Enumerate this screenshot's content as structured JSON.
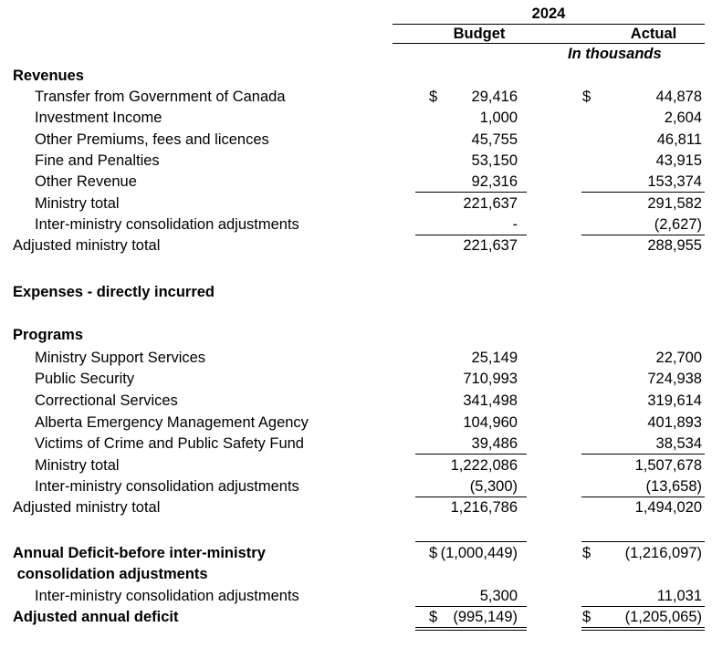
{
  "header": {
    "year": "2024",
    "budget_label": "Budget",
    "actual_label": "Actual",
    "units": "In thousands"
  },
  "revenues": {
    "title": "Revenues",
    "rows": [
      {
        "label": "Transfer from Government of Canada",
        "budget": "29,416",
        "actual": "44,878",
        "budget_currency": "$",
        "actual_currency": "$"
      },
      {
        "label": "Investment Income",
        "budget": "1,000",
        "actual": "2,604"
      },
      {
        "label": "Other Premiums, fees and licences",
        "budget": "45,755",
        "actual": "46,811"
      },
      {
        "label": "Fine and Penalties",
        "budget": "53,150",
        "actual": "43,915"
      },
      {
        "label": "Other Revenue",
        "budget": "92,316",
        "actual": "153,374"
      }
    ],
    "ministry_total": {
      "label": "Ministry total",
      "budget": "221,637",
      "actual": "291,582"
    },
    "consolidation": {
      "label": "Inter-ministry consolidation adjustments",
      "budget": "-",
      "actual": "(2,627)"
    },
    "adjusted_total": {
      "label": "Adjusted ministry total",
      "budget": "221,637",
      "actual": "288,955"
    }
  },
  "expenses": {
    "title": "Expenses  - directly incurred",
    "programs_title": "Programs",
    "rows": [
      {
        "label": "Ministry Support Services",
        "budget": "25,149",
        "actual": "22,700"
      },
      {
        "label": "Public Security",
        "budget": "710,993",
        "actual": "724,938"
      },
      {
        "label": "Correctional Services",
        "budget": "341,498",
        "actual": "319,614"
      },
      {
        "label": "Alberta Emergency Management Agency",
        "budget": "104,960",
        "actual": "401,893"
      },
      {
        "label": "Victims of Crime and Public Safety Fund",
        "budget": "39,486",
        "actual": "38,534"
      }
    ],
    "ministry_total": {
      "label": "Ministry total",
      "budget": "1,222,086",
      "actual": "1,507,678"
    },
    "consolidation": {
      "label": "Inter-ministry consolidation adjustments",
      "budget": "(5,300)",
      "actual": "(13,658)"
    },
    "adjusted_total": {
      "label": "Adjusted ministry total",
      "budget": "1,216,786",
      "actual": "1,494,020"
    }
  },
  "deficit": {
    "label_line1": "Annual Deficit-before inter-ministry",
    "label_line2": " consolidation adjustments",
    "budget": "(1,000,449)",
    "actual": "(1,216,097)",
    "budget_currency": "$",
    "actual_currency": "$",
    "consolidation": {
      "label": "Inter-ministry consolidation adjustments",
      "budget": "5,300",
      "actual": "11,031"
    },
    "adjusted": {
      "label": "Adjusted annual deficit",
      "budget": "(995,149)",
      "actual": "(1,205,065)",
      "budget_currency": "$",
      "actual_currency": "$"
    }
  }
}
